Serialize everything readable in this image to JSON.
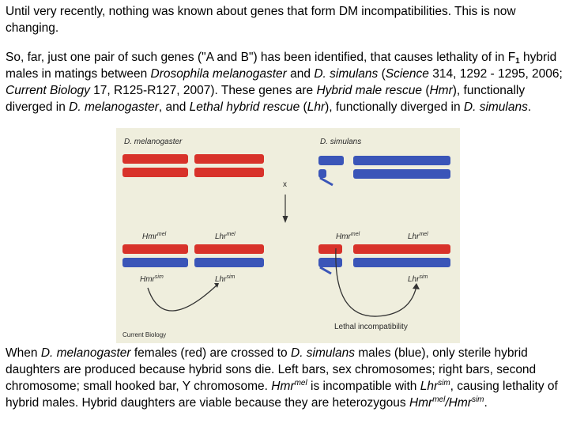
{
  "paragraph1": "Until very recently, nothing was known about genes that form DM incompatibilities. This is now changing.",
  "paragraph2": {
    "t1": "So, far, just one pair of such genes (\"A and B\") has been identified, that causes lethality of in F",
    "t1_sub": "1",
    "t2": " hybrid males in matings between ",
    "t3": "Drosophila melanogaster",
    "t4": " and ",
    "t5": "D. simulans",
    "t6": " (",
    "t7": "Science",
    "t8": " 314, 1292 - 1295, 2006; ",
    "t9": "Current Biology",
    "t10": " 17, R125-R127, 2007). These genes are ",
    "t11": "Hybrid male rescue",
    "t12": " (",
    "t13": "Hmr",
    "t14": "), functionally diverged in ",
    "t15": "D. melanogaster",
    "t16": ", and ",
    "t17": "Lethal hybrid rescue",
    "t18": " (",
    "t19": "Lhr",
    "t20": "), functionally diverged in ",
    "t21": "D. simulans",
    "t22": "."
  },
  "figure": {
    "left_species": "D. melanogaster",
    "right_species": "D. simulans",
    "cross_symbol": "x",
    "hmr_label": "Hmr",
    "lhr_label": "Lhr",
    "mel_suffix": "mel",
    "sim_suffix": "sim",
    "lethal_label": "Lethal incompatibility",
    "credit": "Current Biology",
    "colors": {
      "background": "#efeedd",
      "red": "#d8322a",
      "blue": "#3a55b8",
      "text": "#2a2a2a"
    }
  },
  "caption": {
    "t1": "When ",
    "t2": "D. melanogaster",
    "t3": " females (red) are crossed to ",
    "t4": "D. simulans",
    "t5": " males (blue), only sterile hybrid daughters are produced because hybrid sons die. Left bars, sex chromosomes; right bars, second chromosome; small hooked bar, Y chromosome. ",
    "t6": "Hmr",
    "t6_sup": "mel",
    "t7": " is incompatible with ",
    "t8": "Lhr",
    "t8_sup": "sim",
    "t9": ", causing lethality of hybrid males. Hybrid daughters are viable because they are heterozygous ",
    "t10": "Hmr",
    "t10_sup": "mel",
    "t11": "/",
    "t12": "Hmr",
    "t12_sup": "sim",
    "t13": "."
  }
}
